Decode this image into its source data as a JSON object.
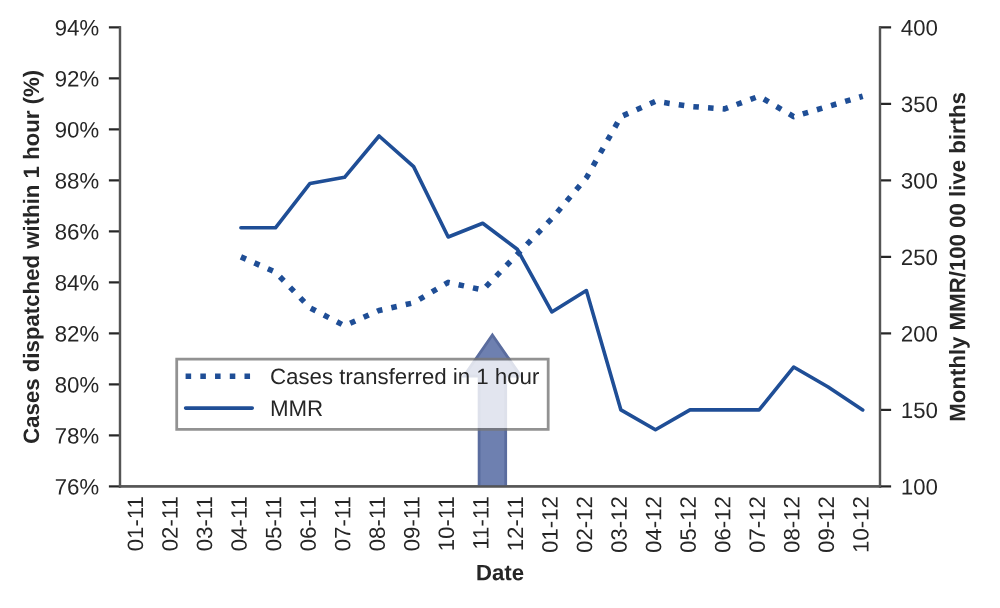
{
  "chart_data": {
    "type": "line",
    "xlabel": "Date",
    "ylabel": "Cases dispatched within 1 hour (%)",
    "y2label": "Monthly MMR/100 00 live births",
    "categories": [
      "01-11",
      "02-11",
      "03-11",
      "04-11",
      "05-11",
      "06-11",
      "07-11",
      "08-11",
      "09-11",
      "10-11",
      "11-11",
      "12-11",
      "01-12",
      "02-12",
      "03-12",
      "04-12",
      "05-12",
      "06-12",
      "07-12",
      "08-12",
      "09-12",
      "10-12"
    ],
    "series": [
      {
        "name": "Cases transferred in 1 hour",
        "color": "#1f4e96",
        "line_style": "dotted",
        "values": [
          null,
          null,
          null,
          85.0,
          84.4,
          83.0,
          82.3,
          82.9,
          83.2,
          84.0,
          83.7,
          85.1,
          86.5,
          88.1,
          90.5,
          91.1,
          90.9,
          90.8,
          91.3,
          90.5,
          90.9,
          91.3
        ]
      },
      {
        "name": "MMR",
        "color": "#1f4e96",
        "line_style": "solid",
        "axis": "y2",
        "values": [
          null,
          null,
          null,
          269,
          269,
          298,
          302,
          329,
          309,
          263,
          272,
          255,
          214,
          228,
          150,
          137,
          150,
          150,
          150,
          178,
          165,
          150
        ]
      }
    ],
    "ylim": [
      76,
      94
    ],
    "yticks": [
      {
        "value": 76,
        "label": "76%"
      },
      {
        "value": 78,
        "label": "78%"
      },
      {
        "value": 80,
        "label": "80%"
      },
      {
        "value": 82,
        "label": "82%"
      },
      {
        "value": 84,
        "label": "84%"
      },
      {
        "value": 86,
        "label": "86%"
      },
      {
        "value": 88,
        "label": "88%"
      },
      {
        "value": 90,
        "label": "90%"
      },
      {
        "value": 92,
        "label": "92%"
      },
      {
        "value": 94,
        "label": "94%"
      }
    ],
    "y2lim": [
      100,
      400
    ],
    "y2ticks": [
      100,
      150,
      200,
      250,
      300,
      350,
      400
    ],
    "grid": false,
    "legend": "bottom left",
    "marker": "none"
  }
}
